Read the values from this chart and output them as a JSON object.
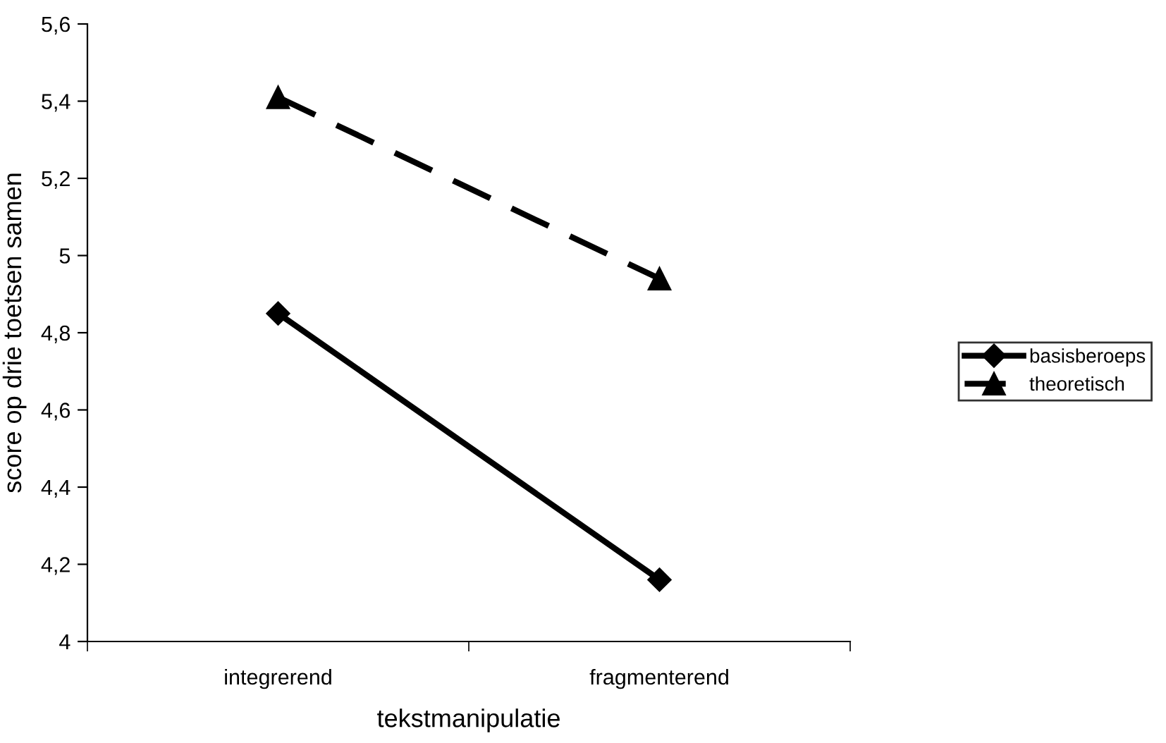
{
  "chart_data": {
    "type": "line",
    "xlabel": "tekstmanipulatie",
    "ylabel": "score op drie toetsen samen",
    "categories": [
      "integrerend",
      "fragmenterend"
    ],
    "series": [
      {
        "name": "basisberoeps",
        "color": "#000000",
        "values": [
          4.85,
          4.16
        ],
        "marker": "diamond",
        "line_style": "solid"
      },
      {
        "name": "theoretisch",
        "color": "#000000",
        "values": [
          5.41,
          4.94
        ],
        "marker": "triangle",
        "line_style": "dashed"
      }
    ],
    "ylim": [
      4,
      5.6
    ],
    "yticks": [
      4,
      {
        "value": 4.2,
        "label": "4,2"
      },
      {
        "value": 4.4,
        "label": "4,4"
      },
      {
        "value": 4.6,
        "label": "4,6"
      },
      {
        "value": 4.8,
        "label": "4,8"
      },
      5,
      {
        "value": 5.2,
        "label": "5,2"
      },
      {
        "value": 5.4,
        "label": "5,4"
      },
      {
        "value": 5.6,
        "label": "5,6"
      }
    ],
    "grid": false,
    "legend": "right"
  }
}
